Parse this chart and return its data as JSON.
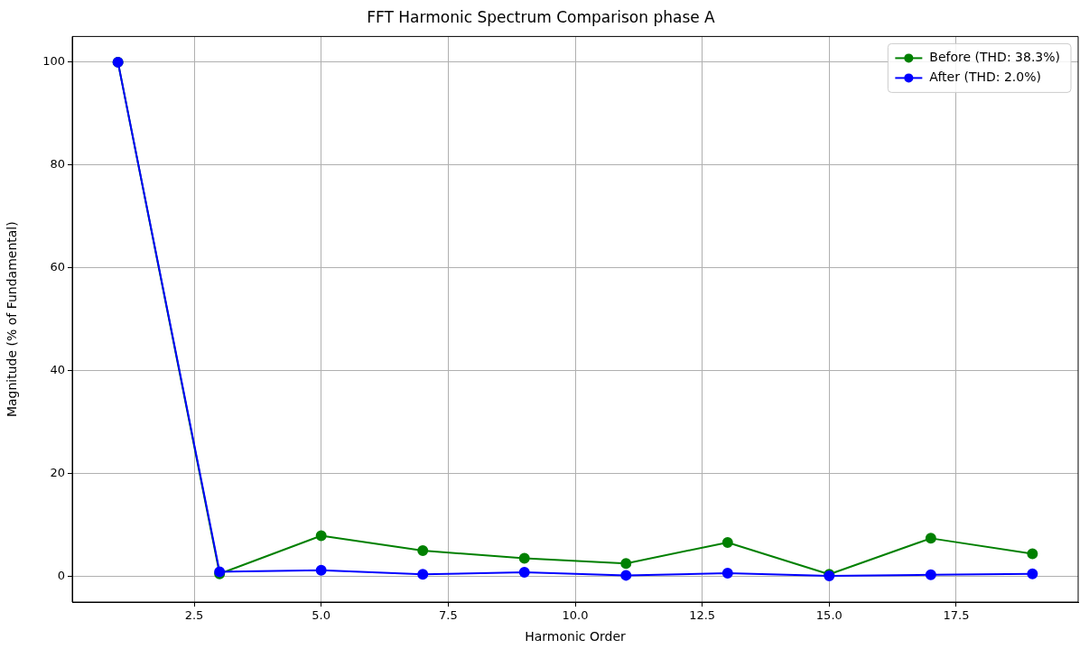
{
  "chart_data": {
    "type": "line",
    "title": "FFT Harmonic Spectrum Comparison phase A",
    "xlabel": "Harmonic Order",
    "ylabel": "Magnitude (% of Fundamental)",
    "x": [
      1,
      3,
      5,
      7,
      9,
      11,
      13,
      15,
      17,
      19
    ],
    "series": [
      {
        "name": "Before (THD: 38.3%)",
        "color": "#008000",
        "values": [
          100,
          0.5,
          7.9,
          5.0,
          3.5,
          2.5,
          6.6,
          0.4,
          7.4,
          4.4
        ]
      },
      {
        "name": "After (THD: 2.0%)",
        "color": "#0000ff",
        "values": [
          100,
          0.9,
          1.2,
          0.4,
          0.8,
          0.2,
          0.6,
          0.1,
          0.3,
          0.5
        ]
      }
    ],
    "xlim": [
      0.1,
      19.9
    ],
    "ylim": [
      -5,
      105
    ],
    "xticks": [
      {
        "value": 2.5,
        "label": "2.5"
      },
      {
        "value": 5,
        "label": "5.0"
      },
      {
        "value": 7.5,
        "label": "7.5"
      },
      {
        "value": 10,
        "label": "10.0"
      },
      {
        "value": 12.5,
        "label": "12.5"
      },
      {
        "value": 15,
        "label": "15.0"
      },
      {
        "value": 17.5,
        "label": "17.5"
      }
    ],
    "yticks": [
      0,
      20,
      40,
      60,
      80,
      100
    ],
    "grid": true,
    "legend": "top right",
    "marker": "circle",
    "line_style": "solid"
  }
}
